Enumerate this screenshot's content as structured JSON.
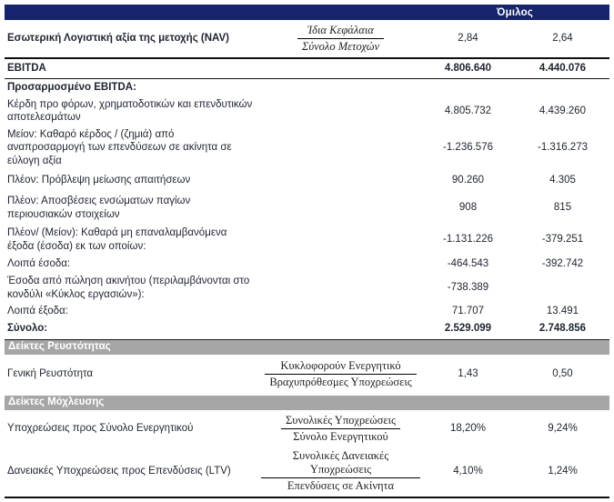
{
  "colors": {
    "header_band": "#16246B",
    "section_band": "#A6A6A6",
    "text": "#1e2430"
  },
  "header": {
    "group": "Όμιλος"
  },
  "rows": [
    {
      "label": "Εσωτερική Λογιστική αξία της μετοχής (NAV)",
      "num": "Ίδια Κεφάλαια",
      "den": "Σύνολο Μετοχών",
      "v1": "2,84",
      "v2": "2,64"
    },
    {
      "label": "EBITDA",
      "v1": "4.806.640",
      "v2": "4.440.076"
    },
    {
      "label": "Προσαρμοσμένο EBITDA:"
    },
    {
      "label": "Κέρδη προ φόρων, χρηματοδοτικών και επενδυτικών αποτελεσμάτων",
      "v1": "4.805.732",
      "v2": "4.439.260"
    },
    {
      "label": "Μείον: Καθαρό κέρδος / (ζημιά) από αναπροσαρμογή των επενδύσεων σε ακίνητα σε εύλογη αξία",
      "v1": "-1.236.576",
      "v2": "-1.316.273"
    },
    {
      "label": "Πλέον: Πρόβλεψη μείωσης απαιτήσεων",
      "v1": "90.260",
      "v2": "4.305"
    },
    {
      "label": "Πλέον: Αποσβέσεις ενσώματων παγίων περιουσιακών στοιχείων",
      "v1": "908",
      "v2": "815"
    },
    {
      "label": "Πλέον/ (Μείον): Καθαρά μη επαναλαμβανόμενα έξοδα (έσοδα) εκ των οποίων:",
      "v1": "-1.131.226",
      "v2": "-379.251"
    },
    {
      "label": "Λοιπά έσοδα:",
      "v1": "-464.543",
      "v2": "-392.742"
    },
    {
      "label": "Έσοδα από πώληση ακινήτου (περιλαμβάνονται στο κονδύλι «Κύκλος εργασιών»):",
      "v1": "-738.389",
      "v2": ""
    },
    {
      "label": "Λοιπά έξοδα:",
      "v1": "71.707",
      "v2": "13.491"
    },
    {
      "label": "Σύνολο:",
      "v1": "2.529.099",
      "v2": "2.748.856"
    }
  ],
  "sections": {
    "liquidity": {
      "title": "Δείκτες Ρευστότητας",
      "rows": [
        {
          "label": "Γενική Ρευστότητα",
          "num": "Κυκλοφορούν Ενεργητικό",
          "den": "Βραχυπρόθεσμες Υποχρεώσεις",
          "v1": "1,43",
          "v2": "0,50"
        }
      ]
    },
    "leverage": {
      "title": "Δείκτες Μόχλευσης",
      "rows": [
        {
          "label": "Υποχρεώσεις προς Σύνολο Ενεργητικού",
          "num": "Συνολικές Υποχρεώσεις",
          "den": "Σύνολο Ενεργητικού",
          "v1": "18,20%",
          "v2": "9,24%"
        },
        {
          "label": "Δανειακές Υποχρεώσεις προς Επενδύσεις (LTV)",
          "num": "Συνολικές Δανειακές Υποχρεώσεις",
          "den": "Επενδύσεις σε Ακίνητα",
          "v1": "4,10%",
          "v2": "1,24%"
        }
      ]
    }
  }
}
